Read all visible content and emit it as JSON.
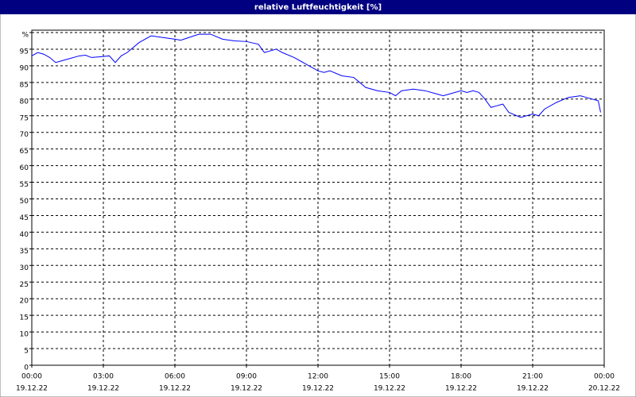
{
  "chart_data": {
    "type": "line",
    "title": "relative Luftfeuchtigkeit [%]",
    "x": [
      0,
      0.25,
      0.5,
      0.75,
      1.0,
      1.25,
      1.5,
      2.0,
      2.25,
      2.5,
      3.0,
      3.25,
      3.5,
      3.75,
      4.0,
      4.5,
      5.0,
      5.5,
      6.0,
      6.25,
      6.5,
      7.0,
      7.5,
      8.0,
      8.5,
      9.0,
      9.5,
      9.75,
      10.0,
      10.25,
      10.5,
      11.0,
      11.5,
      12.0,
      12.25,
      12.5,
      13.0,
      13.5,
      14.0,
      14.5,
      15.0,
      15.25,
      15.5,
      16.0,
      16.5,
      17.0,
      17.25,
      17.5,
      18.0,
      18.25,
      18.5,
      18.75,
      19.0,
      19.25,
      19.5,
      19.75,
      20.0,
      20.5,
      21.0,
      21.25,
      21.5,
      22.0,
      22.5,
      23.0,
      23.25,
      23.5,
      23.75,
      23.85
    ],
    "series": [
      {
        "name": "relative Luftfeuchtigkeit",
        "color": "#0000ff",
        "values": [
          93,
          94,
          93.5,
          92.5,
          91,
          91.5,
          92,
          93,
          93.2,
          92.5,
          92.8,
          93,
          91,
          93,
          94,
          97,
          99,
          98.5,
          98,
          97.7,
          98.3,
          99.5,
          99.5,
          98,
          97.5,
          97.3,
          96.5,
          94,
          94.5,
          95,
          94,
          92.5,
          90.5,
          88.5,
          88,
          88.5,
          87,
          86.5,
          83.5,
          82.5,
          82,
          81,
          82.5,
          83,
          82.5,
          81.5,
          81,
          81.5,
          82.5,
          82,
          82.5,
          82,
          80,
          77.5,
          78,
          78.5,
          76,
          74.5,
          75.5,
          75,
          77,
          79,
          80.5,
          81,
          80.5,
          80,
          79.5,
          76
        ]
      }
    ],
    "xlim": [
      0,
      24
    ],
    "xticks": [
      {
        "value": 0,
        "label": "00:00"
      },
      {
        "value": 3,
        "label": "03:00"
      },
      {
        "value": 6,
        "label": "06:00"
      },
      {
        "value": 9,
        "label": "09:00"
      },
      {
        "value": 12,
        "label": "12:00"
      },
      {
        "value": 15,
        "label": "15:00"
      },
      {
        "value": 18,
        "label": "18:00"
      },
      {
        "value": 21,
        "label": "21:00"
      },
      {
        "value": 24,
        "label": "00:00"
      }
    ],
    "xtick_dates": [
      "19.12.22",
      "19.12.22",
      "19.12.22",
      "19.12.22",
      "19.12.22",
      "19.12.22",
      "19.12.22",
      "19.12.22",
      "20.12.22"
    ],
    "ylim": [
      0,
      100
    ],
    "yticks": [
      0,
      5,
      10,
      15,
      20,
      25,
      30,
      35,
      40,
      45,
      50,
      55,
      60,
      65,
      70,
      75,
      80,
      85,
      90,
      95,
      {
        "value": 100,
        "label": "%"
      }
    ],
    "grid": true
  }
}
